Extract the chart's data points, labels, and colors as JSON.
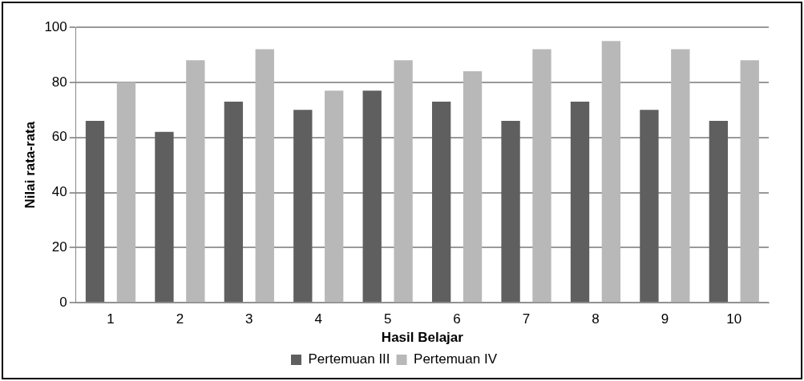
{
  "chart_data": {
    "type": "bar",
    "xlabel": "Hasil Belajar",
    "ylabel": "Nilai rata-rata",
    "categories": [
      "1",
      "2",
      "3",
      "4",
      "5",
      "6",
      "7",
      "8",
      "9",
      "10"
    ],
    "series": [
      {
        "name": "Pertemuan III",
        "color": "#5f5f5f",
        "values": [
          66,
          62,
          73,
          70,
          77,
          73,
          66,
          73,
          70,
          66
        ]
      },
      {
        "name": "Pertemuan IV",
        "color": "#b8b8b8",
        "values": [
          80,
          88,
          92,
          77,
          88,
          84,
          92,
          95,
          92,
          88
        ]
      }
    ],
    "ylim": [
      0,
      100
    ],
    "yticks": [
      0,
      20,
      40,
      60,
      80,
      100
    ],
    "grid": "y",
    "legend": "bottom"
  }
}
